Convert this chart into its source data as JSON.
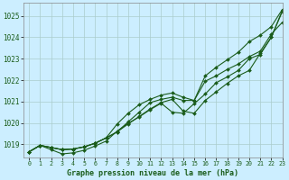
{
  "title": "Graphe pression niveau de la mer (hPa)",
  "bg_color": "#cceeff",
  "grid_color": "#aacccc",
  "line_color": "#1a5c1a",
  "ylim": [
    1018.4,
    1025.6
  ],
  "xlim": [
    -0.5,
    23
  ],
  "yticks": [
    1019,
    1020,
    1021,
    1022,
    1023,
    1024,
    1025
  ],
  "xticks": [
    0,
    1,
    2,
    3,
    4,
    5,
    6,
    7,
    8,
    9,
    10,
    11,
    12,
    13,
    14,
    15,
    16,
    17,
    18,
    19,
    20,
    21,
    22,
    23
  ],
  "series": [
    [
      1018.65,
      1018.95,
      1018.85,
      1018.75,
      1018.78,
      1018.88,
      1019.05,
      1019.3,
      1019.58,
      1019.95,
      1020.3,
      1020.65,
      1020.95,
      1021.1,
      1020.55,
      1020.45,
      1021.05,
      1021.45,
      1021.85,
      1022.2,
      1022.45,
      1023.25,
      1024.0,
      1025.25
    ],
    [
      1018.65,
      1018.95,
      1018.85,
      1018.75,
      1018.78,
      1018.88,
      1019.05,
      1019.3,
      1019.58,
      1020.05,
      1020.5,
      1020.95,
      1021.1,
      1021.2,
      1021.05,
      1021.05,
      1021.95,
      1022.2,
      1022.5,
      1022.75,
      1023.1,
      1023.35,
      1024.15,
      1024.7
    ],
    [
      1018.65,
      1018.95,
      1018.85,
      1018.75,
      1018.78,
      1018.88,
      1019.05,
      1019.3,
      1019.95,
      1020.45,
      1020.85,
      1021.1,
      1021.3,
      1021.4,
      1021.2,
      1021.05,
      1022.2,
      1022.6,
      1022.95,
      1023.3,
      1023.8,
      1024.1,
      1024.5,
      1025.3
    ],
    [
      1018.65,
      1018.95,
      1018.75,
      1018.55,
      1018.6,
      1018.72,
      1018.92,
      1019.15,
      1019.62,
      1019.98,
      1020.28,
      1020.62,
      1020.92,
      1020.5,
      1020.45,
      1020.9,
      1021.35,
      1021.88,
      1022.15,
      1022.45,
      1023.0,
      1023.2,
      1024.0,
      1025.2
    ]
  ]
}
